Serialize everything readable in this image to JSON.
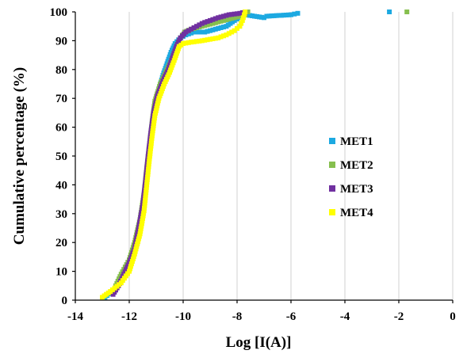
{
  "chart_data": {
    "type": "scatter",
    "xlabel": "Log [I(A)]",
    "ylabel": "Cumulative percentage (%)",
    "xlim": [
      -14,
      0
    ],
    "ylim": [
      0,
      100
    ],
    "xticks": [
      "-14",
      "-12",
      "-10",
      "-8",
      "-6",
      "-4",
      "-2",
      "0"
    ],
    "yticks": [
      "0",
      "10",
      "20",
      "30",
      "40",
      "50",
      "60",
      "70",
      "80",
      "90",
      "100"
    ],
    "grid": "vertical",
    "legend_position": "right",
    "series": [
      {
        "name": "MET1",
        "color": "#1ca9e1",
        "points": [
          [
            -12.9,
            1
          ],
          [
            -12.5,
            4
          ],
          [
            -12.2,
            9
          ],
          [
            -11.9,
            14
          ],
          [
            -11.7,
            20
          ],
          [
            -11.55,
            28
          ],
          [
            -11.45,
            36
          ],
          [
            -11.35,
            44
          ],
          [
            -11.25,
            52
          ],
          [
            -11.15,
            60
          ],
          [
            -11.05,
            67
          ],
          [
            -10.9,
            73
          ],
          [
            -10.75,
            78
          ],
          [
            -10.6,
            82
          ],
          [
            -10.45,
            86
          ],
          [
            -10.3,
            89
          ],
          [
            -10.1,
            91
          ],
          [
            -9.9,
            92
          ],
          [
            -9.6,
            93
          ],
          [
            -9.2,
            93
          ],
          [
            -8.8,
            94
          ],
          [
            -8.4,
            95
          ],
          [
            -8.1,
            97
          ],
          [
            -7.9,
            98
          ],
          [
            -7.7,
            99
          ],
          [
            -7.0,
            98
          ],
          [
            -6.9,
            98.5
          ],
          [
            -6.0,
            99
          ],
          [
            -5.75,
            99.5
          ],
          [
            -2.35,
            100
          ]
        ]
      },
      {
        "name": "MET2",
        "color": "#86bf4e",
        "points": [
          [
            -12.5,
            5
          ],
          [
            -12.3,
            9
          ],
          [
            -12.0,
            14
          ],
          [
            -11.8,
            20
          ],
          [
            -11.6,
            28
          ],
          [
            -11.45,
            37
          ],
          [
            -11.35,
            46
          ],
          [
            -11.25,
            54
          ],
          [
            -11.15,
            62
          ],
          [
            -11.05,
            69
          ],
          [
            -10.85,
            75
          ],
          [
            -10.6,
            80
          ],
          [
            -10.4,
            84
          ],
          [
            -10.25,
            88
          ],
          [
            -10.1,
            91
          ],
          [
            -9.95,
            93
          ],
          [
            -9.7,
            94
          ],
          [
            -9.3,
            95
          ],
          [
            -8.9,
            96
          ],
          [
            -8.5,
            97
          ],
          [
            -8.1,
            98
          ],
          [
            -7.7,
            99
          ],
          [
            -7.6,
            100
          ],
          [
            -1.7,
            100
          ]
        ]
      },
      {
        "name": "MET3",
        "color": "#7030a0",
        "points": [
          [
            -12.6,
            2
          ],
          [
            -12.4,
            5
          ],
          [
            -12.2,
            9
          ],
          [
            -12.0,
            13
          ],
          [
            -11.8,
            18
          ],
          [
            -11.65,
            25
          ],
          [
            -11.5,
            33
          ],
          [
            -11.4,
            41
          ],
          [
            -11.3,
            50
          ],
          [
            -11.2,
            58
          ],
          [
            -11.1,
            65
          ],
          [
            -10.95,
            71
          ],
          [
            -10.75,
            76
          ],
          [
            -10.55,
            80
          ],
          [
            -10.4,
            84
          ],
          [
            -10.25,
            88
          ],
          [
            -10.1,
            91
          ],
          [
            -9.9,
            93
          ],
          [
            -9.6,
            94.5
          ],
          [
            -9.3,
            96
          ],
          [
            -9.0,
            97
          ],
          [
            -8.7,
            98
          ],
          [
            -8.3,
            99
          ],
          [
            -7.9,
            99.5
          ],
          [
            -7.7,
            100
          ]
        ]
      },
      {
        "name": "MET4",
        "color": "#ffff00",
        "points": [
          [
            -13.0,
            1
          ],
          [
            -12.7,
            3
          ],
          [
            -12.3,
            6
          ],
          [
            -12.0,
            10
          ],
          [
            -11.8,
            16
          ],
          [
            -11.6,
            23
          ],
          [
            -11.45,
            31
          ],
          [
            -11.35,
            40
          ],
          [
            -11.25,
            49
          ],
          [
            -11.15,
            57
          ],
          [
            -11.05,
            64
          ],
          [
            -10.9,
            70
          ],
          [
            -10.7,
            75
          ],
          [
            -10.5,
            79
          ],
          [
            -10.3,
            84
          ],
          [
            -10.15,
            88
          ],
          [
            -10.0,
            89
          ],
          [
            -9.7,
            89.5
          ],
          [
            -9.3,
            90
          ],
          [
            -9.0,
            90.5
          ],
          [
            -8.7,
            91
          ],
          [
            -8.4,
            92
          ],
          [
            -8.1,
            93.5
          ],
          [
            -7.9,
            95
          ],
          [
            -7.8,
            97
          ],
          [
            -7.7,
            100
          ]
        ]
      }
    ]
  }
}
